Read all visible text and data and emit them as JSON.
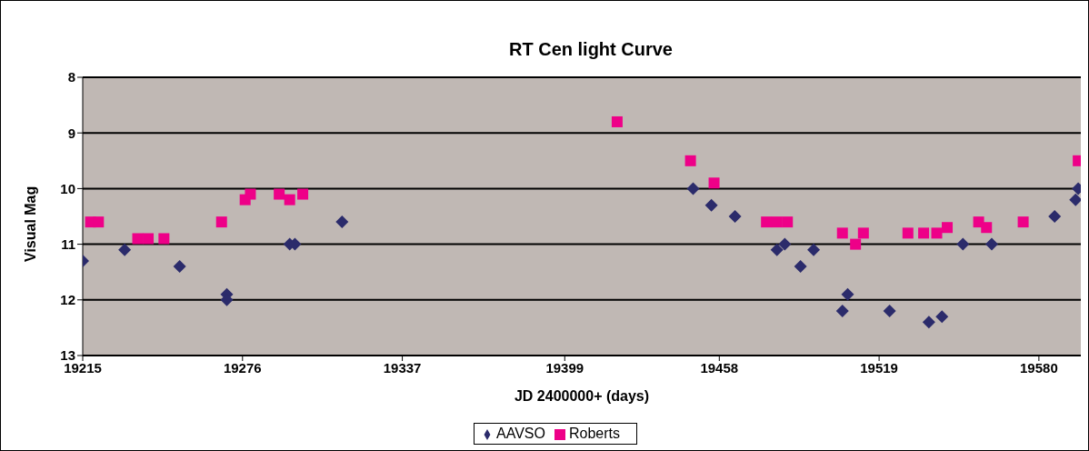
{
  "chart_data": {
    "type": "scatter",
    "title": "RT Cen light Curve",
    "xlabel": "JD 2400000+ (days)",
    "ylabel": "Visual Mag",
    "xlim": [
      19215,
      19596
    ],
    "xticks": [
      19215,
      19276,
      19337,
      19399,
      19458,
      19519,
      19580
    ],
    "ylim": [
      13,
      8
    ],
    "yticks": [
      8,
      9,
      10,
      11,
      12,
      13
    ],
    "grid": "y",
    "legend": "bottom",
    "series": [
      {
        "name": "AAVSO",
        "color": "#2b2b6b",
        "marker": "diamond",
        "x": [
          19215,
          19231,
          19252,
          19270,
          19270,
          19294,
          19296,
          19314,
          19448,
          19455,
          19464,
          19480,
          19483,
          19489,
          19494,
          19505,
          19507,
          19523,
          19538,
          19543,
          19551,
          19562,
          19586,
          19594,
          19595
        ],
        "values": [
          11.3,
          11.1,
          11.4,
          11.9,
          12.0,
          11.0,
          11.0,
          10.6,
          10.0,
          10.3,
          10.5,
          11.1,
          11.0,
          11.4,
          11.1,
          12.2,
          11.9,
          12.2,
          12.4,
          12.3,
          11.0,
          11.0,
          10.5,
          10.2,
          10.0
        ]
      },
      {
        "name": "Roberts",
        "color": "#ee0088",
        "marker": "square",
        "x": [
          19218,
          19221,
          19236,
          19240,
          19246,
          19268,
          19277,
          19279,
          19290,
          19294,
          19299,
          19419,
          19447,
          19456,
          19476,
          19480,
          19484,
          19505,
          19510,
          19513,
          19530,
          19536,
          19541,
          19545,
          19557,
          19560,
          19574,
          19595
        ],
        "values": [
          10.6,
          10.6,
          10.9,
          10.9,
          10.9,
          10.6,
          10.2,
          10.1,
          10.1,
          10.2,
          10.1,
          8.8,
          9.5,
          9.9,
          10.6,
          10.6,
          10.6,
          10.8,
          11.0,
          10.8,
          10.8,
          10.8,
          10.8,
          10.7,
          10.6,
          10.7,
          10.6,
          9.5
        ]
      }
    ]
  }
}
